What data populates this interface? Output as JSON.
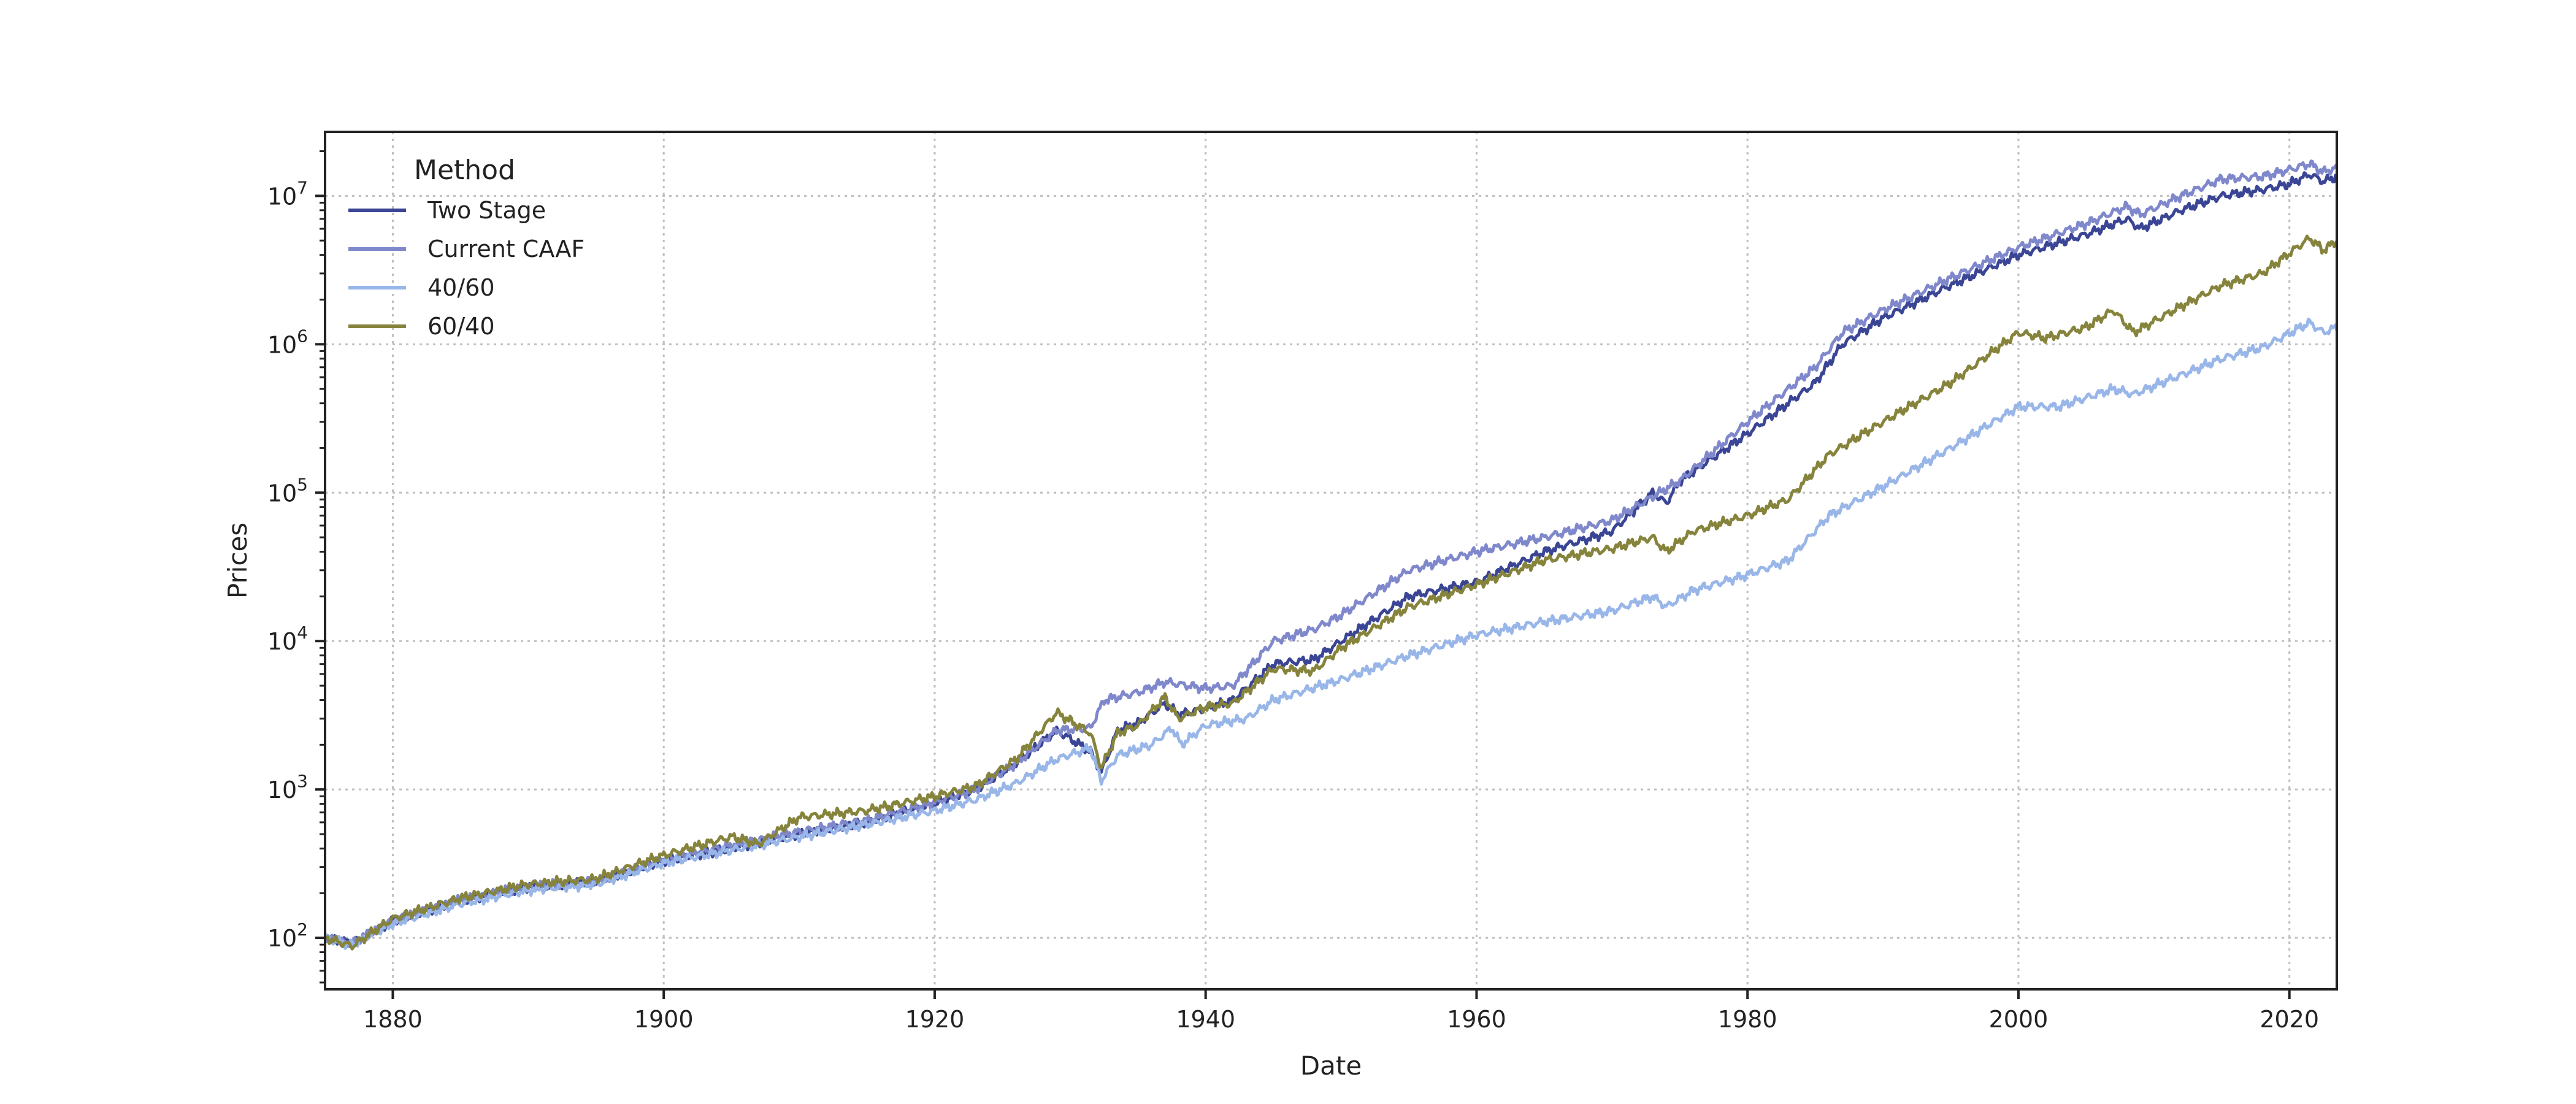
{
  "chart_data": {
    "type": "line",
    "title": "",
    "xlabel": "Date",
    "ylabel": "Prices",
    "xlim": [
      1875,
      2023.5
    ],
    "ylim": [
      45,
      27000000
    ],
    "yscale": "log",
    "grid": true,
    "legend": {
      "title": "Method",
      "placement": "top-left"
    },
    "x_ticks": [
      {
        "value": 1880,
        "label": "1880"
      },
      {
        "value": 1900,
        "label": "1900"
      },
      {
        "value": 1920,
        "label": "1920"
      },
      {
        "value": 1940,
        "label": "1940"
      },
      {
        "value": 1960,
        "label": "1960"
      },
      {
        "value": 1980,
        "label": "1980"
      },
      {
        "value": 2000,
        "label": "2000"
      },
      {
        "value": 2020,
        "label": "2020"
      }
    ],
    "y_ticks": [
      {
        "value": 100,
        "base": "10",
        "exp": "2"
      },
      {
        "value": 1000,
        "base": "10",
        "exp": "3"
      },
      {
        "value": 10000,
        "base": "10",
        "exp": "4"
      },
      {
        "value": 100000,
        "base": "10",
        "exp": "5"
      },
      {
        "value": 1000000,
        "base": "10",
        "exp": "6"
      },
      {
        "value": 10000000,
        "base": "10",
        "exp": "7"
      }
    ],
    "series": [
      {
        "name": "Two Stage",
        "color": "#3a4595",
        "points": [
          [
            1875,
            100
          ],
          [
            1877,
            92
          ],
          [
            1880,
            130
          ],
          [
            1885,
            180
          ],
          [
            1890,
            220
          ],
          [
            1895,
            240
          ],
          [
            1900,
            330
          ],
          [
            1905,
            400
          ],
          [
            1910,
            500
          ],
          [
            1915,
            600
          ],
          [
            1920,
            800
          ],
          [
            1923,
            1000
          ],
          [
            1926,
            1500
          ],
          [
            1929,
            2500
          ],
          [
            1931.5,
            1800
          ],
          [
            1932.3,
            1300
          ],
          [
            1933.5,
            2500
          ],
          [
            1935,
            2800
          ],
          [
            1937,
            3800
          ],
          [
            1938,
            3200
          ],
          [
            1940,
            3500
          ],
          [
            1942,
            4000
          ],
          [
            1945,
            7000
          ],
          [
            1948,
            7500
          ],
          [
            1950,
            10000
          ],
          [
            1955,
            20000
          ],
          [
            1960,
            25000
          ],
          [
            1965,
            40000
          ],
          [
            1970,
            55000
          ],
          [
            1973,
            100000
          ],
          [
            1974,
            85000
          ],
          [
            1975,
            120000
          ],
          [
            1980,
            250000
          ],
          [
            1985,
            550000
          ],
          [
            1987,
            1000000
          ],
          [
            1990,
            1500000
          ],
          [
            1995,
            2500000
          ],
          [
            2000,
            4000000
          ],
          [
            2005,
            5500000
          ],
          [
            2008,
            7000000
          ],
          [
            2009,
            6000000
          ],
          [
            2012,
            8000000
          ],
          [
            2015,
            10000000
          ],
          [
            2018,
            11000000
          ],
          [
            2020,
            12000000
          ],
          [
            2021.5,
            14000000
          ],
          [
            2022.5,
            12500000
          ],
          [
            2023.5,
            13500000
          ]
        ]
      },
      {
        "name": "Current CAAF",
        "color": "#8088cc",
        "points": [
          [
            1875,
            100
          ],
          [
            1877,
            92
          ],
          [
            1880,
            130
          ],
          [
            1885,
            180
          ],
          [
            1890,
            220
          ],
          [
            1895,
            240
          ],
          [
            1900,
            340
          ],
          [
            1905,
            420
          ],
          [
            1910,
            520
          ],
          [
            1915,
            620
          ],
          [
            1920,
            820
          ],
          [
            1923,
            1000
          ],
          [
            1926,
            1500
          ],
          [
            1929,
            2500
          ],
          [
            1931.5,
            2600
          ],
          [
            1932.5,
            4000
          ],
          [
            1935,
            4500
          ],
          [
            1937,
            5300
          ],
          [
            1940,
            4800
          ],
          [
            1942,
            5000
          ],
          [
            1945,
            10000
          ],
          [
            1948,
            12000
          ],
          [
            1950,
            15000
          ],
          [
            1955,
            30000
          ],
          [
            1960,
            40000
          ],
          [
            1965,
            50000
          ],
          [
            1970,
            65000
          ],
          [
            1975,
            120000
          ],
          [
            1980,
            300000
          ],
          [
            1985,
            700000
          ],
          [
            1987,
            1200000
          ],
          [
            1990,
            1700000
          ],
          [
            1995,
            2800000
          ],
          [
            2000,
            4500000
          ],
          [
            2005,
            6500000
          ],
          [
            2008,
            8500000
          ],
          [
            2009,
            7500000
          ],
          [
            2012,
            10000000
          ],
          [
            2015,
            13000000
          ],
          [
            2018,
            13500000
          ],
          [
            2020,
            15000000
          ],
          [
            2021.5,
            16500000
          ],
          [
            2022.5,
            14500000
          ],
          [
            2023.5,
            15500000
          ]
        ]
      },
      {
        "name": "40/60",
        "color": "#99b6e8",
        "points": [
          [
            1875,
            100
          ],
          [
            1877,
            90
          ],
          [
            1880,
            125
          ],
          [
            1885,
            170
          ],
          [
            1890,
            210
          ],
          [
            1895,
            230
          ],
          [
            1900,
            320
          ],
          [
            1905,
            390
          ],
          [
            1910,
            480
          ],
          [
            1915,
            580
          ],
          [
            1920,
            720
          ],
          [
            1923,
            850
          ],
          [
            1926,
            1100
          ],
          [
            1929,
            1600
          ],
          [
            1931.5,
            1900
          ],
          [
            1932.3,
            1150
          ],
          [
            1933.5,
            1700
          ],
          [
            1936,
            2000
          ],
          [
            1937.5,
            2600
          ],
          [
            1938.2,
            2000
          ],
          [
            1940,
            2700
          ],
          [
            1943,
            3000
          ],
          [
            1945,
            4000
          ],
          [
            1950,
            5500
          ],
          [
            1955,
            8000
          ],
          [
            1960,
            11000
          ],
          [
            1965,
            13500
          ],
          [
            1970,
            16000
          ],
          [
            1973,
            20000
          ],
          [
            1974,
            17000
          ],
          [
            1976,
            22000
          ],
          [
            1980,
            28000
          ],
          [
            1983,
            35000
          ],
          [
            1986,
            70000
          ],
          [
            1990,
            110000
          ],
          [
            1995,
            200000
          ],
          [
            2000,
            380000
          ],
          [
            2003,
            380000
          ],
          [
            2007,
            500000
          ],
          [
            2008.5,
            460000
          ],
          [
            2012,
            620000
          ],
          [
            2015,
            800000
          ],
          [
            2018,
            950000
          ],
          [
            2021.5,
            1400000
          ],
          [
            2022.5,
            1200000
          ],
          [
            2023.5,
            1300000
          ]
        ]
      },
      {
        "name": "60/40",
        "color": "#86843c",
        "points": [
          [
            1875,
            100
          ],
          [
            1877,
            88
          ],
          [
            1880,
            135
          ],
          [
            1885,
            185
          ],
          [
            1890,
            230
          ],
          [
            1895,
            250
          ],
          [
            1900,
            360
          ],
          [
            1905,
            480
          ],
          [
            1907,
            430
          ],
          [
            1910,
            650
          ],
          [
            1915,
            720
          ],
          [
            1920,
            900
          ],
          [
            1923,
            1050
          ],
          [
            1926,
            1600
          ],
          [
            1929,
            3300
          ],
          [
            1931.5,
            2400
          ],
          [
            1932.3,
            1400
          ],
          [
            1933.5,
            2400
          ],
          [
            1935,
            2700
          ],
          [
            1937,
            4200
          ],
          [
            1938,
            3000
          ],
          [
            1940,
            3600
          ],
          [
            1942,
            3800
          ],
          [
            1945,
            6500
          ],
          [
            1948,
            6300
          ],
          [
            1950,
            9000
          ],
          [
            1955,
            17000
          ],
          [
            1960,
            24000
          ],
          [
            1965,
            35000
          ],
          [
            1970,
            42000
          ],
          [
            1973,
            50000
          ],
          [
            1974,
            40000
          ],
          [
            1976,
            55000
          ],
          [
            1980,
            70000
          ],
          [
            1983,
            90000
          ],
          [
            1986,
            180000
          ],
          [
            1990,
            300000
          ],
          [
            1995,
            550000
          ],
          [
            2000,
            1200000
          ],
          [
            2002,
            1100000
          ],
          [
            2005,
            1300000
          ],
          [
            2007,
            1700000
          ],
          [
            2008.5,
            1200000
          ],
          [
            2012,
            1800000
          ],
          [
            2015,
            2500000
          ],
          [
            2018,
            3000000
          ],
          [
            2021.5,
            5200000
          ],
          [
            2022.5,
            4300000
          ],
          [
            2023.5,
            5000000
          ]
        ]
      }
    ]
  }
}
